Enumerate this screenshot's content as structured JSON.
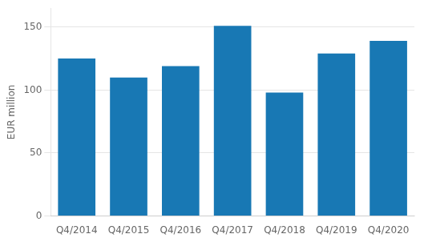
{
  "chart_data": {
    "type": "bar",
    "categories": [
      "Q4/2014",
      "Q4/2015",
      "Q4/2016",
      "Q4/2017",
      "Q4/2018",
      "Q4/2019",
      "Q4/2020"
    ],
    "values": [
      125,
      110,
      119,
      151,
      98,
      129,
      139
    ],
    "color": "#1878b4",
    "ylabel": "EUR million",
    "ylim": [
      0,
      165
    ],
    "yticks": [
      0,
      50,
      100,
      150
    ],
    "grid": true
  }
}
